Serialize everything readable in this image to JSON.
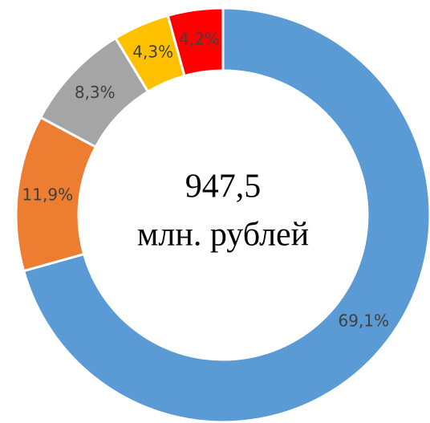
{
  "chart_data": {
    "type": "donut",
    "center_text": [
      "947,5",
      "млн. рублей"
    ],
    "values": [
      69.1,
      11.9,
      8.3,
      4.3,
      4.2
    ],
    "value_labels": [
      "69,1%",
      "11,9%",
      "8,3%",
      "4,3%",
      "4,2%"
    ],
    "colors": [
      "#5b9bd5",
      "#ed7d31",
      "#a5a5a5",
      "#ffc000",
      "#ff0000"
    ]
  }
}
